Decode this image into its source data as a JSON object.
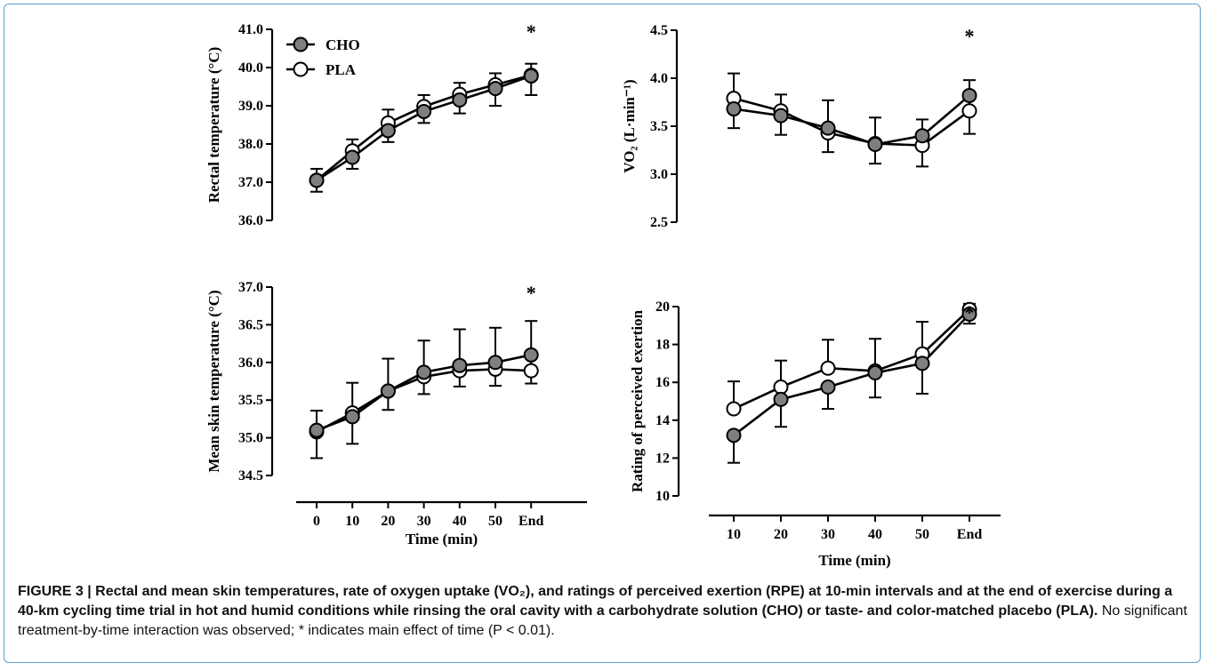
{
  "caption": {
    "label": "FIGURE 3 |",
    "bold": " Rectal and mean skin temperatures, rate of oxygen uptake (VO₂), and ratings of perceived exertion (RPE) at 10-min intervals and at the end of exercise during a 40-km cycling time trial in hot and humid conditions while rinsing the oral cavity with a carbohydrate solution (CHO) or taste- and color-matched placebo (PLA).",
    "normal": " No significant treatment-by-time interaction was observed; * indicates main effect of time (P < 0.01)."
  },
  "legend": [
    {
      "name": "CHO",
      "fill": "#7f7f7f"
    },
    {
      "name": "PLA",
      "fill": "#ffffff"
    }
  ],
  "chart_data": [
    {
      "type": "line",
      "ylabel": "Rectal temperature (°C)",
      "xlabel": "",
      "categories": [
        "0",
        "10",
        "20",
        "30",
        "40",
        "50",
        "End"
      ],
      "ylim": [
        36.0,
        41.0
      ],
      "yticks": [
        36.0,
        37.0,
        38.0,
        39.0,
        40.0,
        41.0
      ],
      "ytick_labels": [
        "36.0",
        "37.0",
        "38.0",
        "39.0",
        "40.0",
        "41.0"
      ],
      "show_xaxis": false,
      "annotation": "*",
      "legend": "top-left",
      "series": [
        {
          "name": "CHO",
          "values": [
            37.05,
            37.65,
            38.35,
            38.85,
            39.15,
            39.45,
            39.78
          ],
          "err": [
            0.3,
            0.3,
            0.3,
            0.3,
            0.35,
            0.45,
            0.5
          ]
        },
        {
          "name": "PLA",
          "values": [
            37.05,
            37.82,
            38.55,
            38.98,
            39.3,
            39.55,
            39.8
          ],
          "err": [
            0.3,
            0.3,
            0.35,
            0.3,
            0.3,
            0.3,
            0.3
          ]
        }
      ]
    },
    {
      "type": "line",
      "ylabel": "VO₂ (L·min⁻¹)",
      "xlabel": "",
      "categories": [
        "10",
        "20",
        "30",
        "40",
        "50",
        "End"
      ],
      "ylim": [
        2.5,
        4.5
      ],
      "yticks": [
        2.5,
        3.0,
        3.5,
        4.0,
        4.5
      ],
      "ytick_labels": [
        "2.5",
        "3.0",
        "3.5",
        "4.0",
        "4.5"
      ],
      "show_xaxis": false,
      "annotation": "*",
      "series": [
        {
          "name": "CHO",
          "values": [
            3.68,
            3.61,
            3.48,
            3.31,
            3.4,
            3.82
          ],
          "err": [
            0.2,
            0.2,
            0.25,
            0.2,
            0.32,
            0.4
          ]
        },
        {
          "name": "PLA",
          "values": [
            3.79,
            3.66,
            3.43,
            3.32,
            3.3,
            3.66
          ],
          "err": [
            0.26,
            0.17,
            0.34,
            0.27,
            0.27,
            0.32
          ]
        }
      ]
    },
    {
      "type": "line",
      "ylabel": "Mean skin temperature (°C)",
      "xlabel": "Time (min)",
      "categories": [
        "0",
        "10",
        "20",
        "30",
        "40",
        "50",
        "End"
      ],
      "ylim": [
        34.5,
        37.0
      ],
      "yticks": [
        34.5,
        35.0,
        35.5,
        36.0,
        36.5,
        37.0
      ],
      "ytick_labels": [
        "34.5",
        "35.0",
        "35.5",
        "36.0",
        "36.5",
        "37.0"
      ],
      "show_xaxis": true,
      "annotation": "*",
      "series": [
        {
          "name": "CHO",
          "values": [
            35.1,
            35.28,
            35.62,
            35.87,
            35.96,
            36.0,
            36.1
          ],
          "err": [
            0.37,
            0.36,
            0.25,
            0.29,
            0.28,
            0.31,
            0.38
          ]
        },
        {
          "name": "PLA",
          "values": [
            35.08,
            35.33,
            35.62,
            35.81,
            35.89,
            35.91,
            35.89
          ],
          "err": [
            0.28,
            0.4,
            0.43,
            0.48,
            0.55,
            0.55,
            0.66
          ]
        }
      ]
    },
    {
      "type": "line",
      "ylabel": "Rating of perceived exertion",
      "xlabel": "Time (min)",
      "categories": [
        "10",
        "20",
        "30",
        "40",
        "50",
        "End"
      ],
      "ylim": [
        10,
        20
      ],
      "yticks": [
        10,
        12,
        14,
        16,
        18,
        20
      ],
      "ytick_labels": [
        "10",
        "12",
        "14",
        "16",
        "18",
        "20"
      ],
      "show_xaxis": true,
      "annotation": "*",
      "series": [
        {
          "name": "CHO",
          "values": [
            13.2,
            15.1,
            15.75,
            16.5,
            17.0,
            19.6
          ],
          "err": [
            1.45,
            1.45,
            1.15,
            1.3,
            1.6,
            0.5
          ]
        },
        {
          "name": "PLA",
          "values": [
            14.6,
            15.75,
            16.75,
            16.6,
            17.5,
            19.85
          ],
          "err": [
            1.45,
            1.4,
            1.5,
            1.7,
            1.7,
            0.3
          ]
        }
      ]
    }
  ]
}
